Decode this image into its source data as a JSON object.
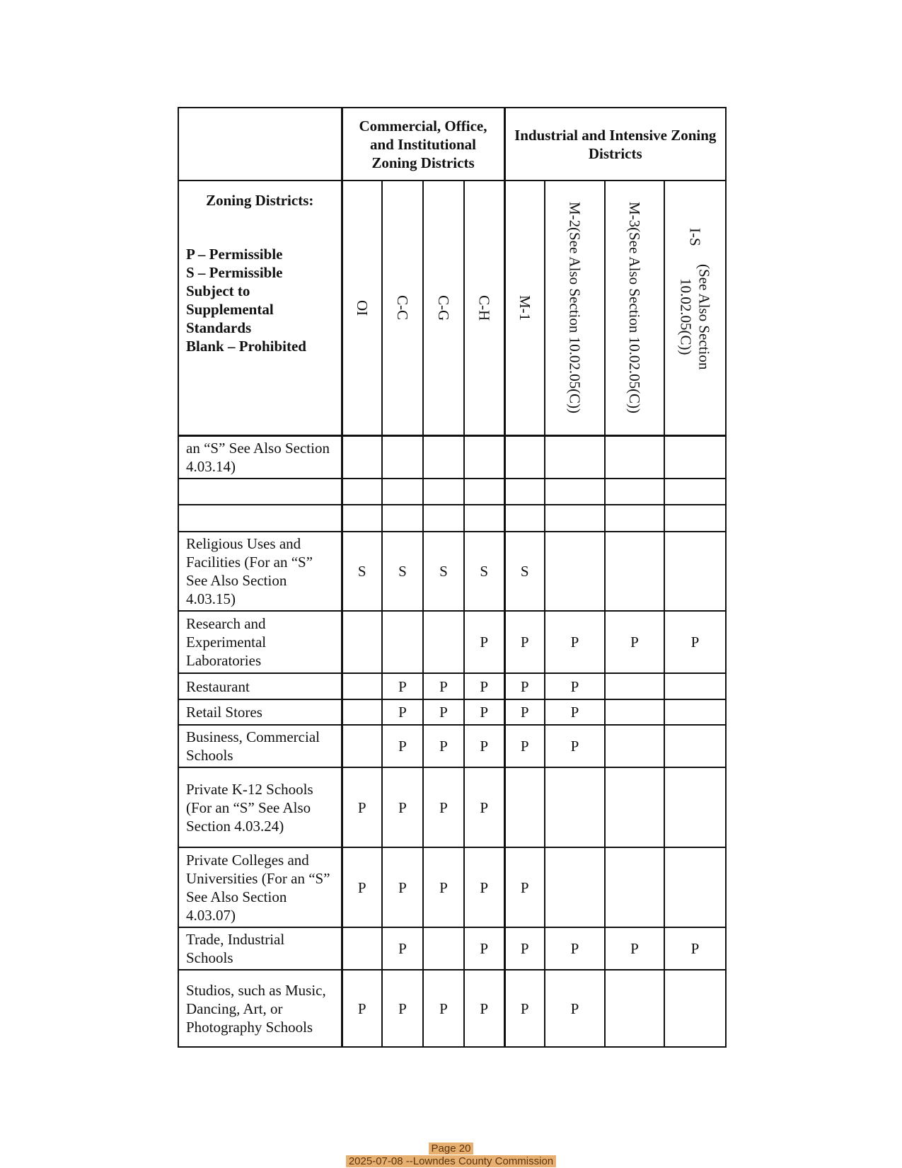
{
  "header": {
    "groups": [
      "Commercial, Office, and Institutional Zoning Districts",
      "Industrial and Intensive Zoning Districts"
    ],
    "legend_title": "Zoning Districts:",
    "legend_lines": [
      "P – Permissible",
      "S – Permissible Subject to Supplemental Standards",
      "Blank – Prohibited"
    ],
    "columns": [
      {
        "code": "OI",
        "note": ""
      },
      {
        "code": "C-C",
        "note": ""
      },
      {
        "code": "C-G",
        "note": ""
      },
      {
        "code": "C-H",
        "note": ""
      },
      {
        "code": "M-1",
        "note": ""
      },
      {
        "code": "M-2",
        "note": "(See Also Section 10.02.05(C))"
      },
      {
        "code": "M-3",
        "note": "(See Also Section 10.02.05(C))"
      },
      {
        "code": "I-S",
        "note": "(See Also Section 10.02.05(C))"
      }
    ]
  },
  "rows": [
    {
      "use": "an “S” See Also Section 4.03.14)",
      "values": [
        "",
        "",
        "",
        "",
        "",
        "",
        "",
        ""
      ]
    },
    {
      "use": "",
      "values": [
        "",
        "",
        "",
        "",
        "",
        "",
        "",
        ""
      ]
    },
    {
      "use": "",
      "values": [
        "",
        "",
        "",
        "",
        "",
        "",
        "",
        ""
      ]
    },
    {
      "use": "Religious Uses and Facilities (For an “S” See Also Section 4.03.15)",
      "values": [
        "S",
        "S",
        "S",
        "S",
        "S",
        "",
        "",
        ""
      ]
    },
    {
      "use": "Research and Experimental Laboratories",
      "values": [
        "",
        "",
        "",
        "P",
        "P",
        "P",
        "P",
        "P"
      ]
    },
    {
      "use": "Restaurant",
      "values": [
        "",
        "P",
        "P",
        "P",
        "P",
        "P",
        "",
        ""
      ]
    },
    {
      "use": "Retail Stores",
      "values": [
        "",
        "P",
        "P",
        "P",
        "P",
        "P",
        "",
        ""
      ]
    },
    {
      "use": "Business, Commercial Schools",
      "values": [
        "",
        "P",
        "P",
        "P",
        "P",
        "P",
        "",
        ""
      ]
    },
    {
      "use": "Private K-12 Schools (For an “S” See Also Section 4.03.24)",
      "values": [
        "P",
        "P",
        "P",
        "P",
        "",
        "",
        "",
        ""
      ]
    },
    {
      "use": "Private Colleges and Universities (For an “S” See Also Section 4.03.07)",
      "values": [
        "P",
        "P",
        "P",
        "P",
        "P",
        "",
        "",
        ""
      ]
    },
    {
      "use": "Trade, Industrial Schools",
      "values": [
        "",
        "P",
        "",
        "P",
        "P",
        "P",
        "P",
        "P"
      ]
    },
    {
      "use": "Studios, such as Music, Dancing, Art, or Photography Schools",
      "values": [
        "P",
        "P",
        "P",
        "P",
        "P",
        "P",
        "",
        ""
      ]
    }
  ],
  "footer": {
    "page": "Page 20",
    "source": "2025-07-08 --Lowndes County Commission",
    "highlight_color": "#e8b070"
  }
}
